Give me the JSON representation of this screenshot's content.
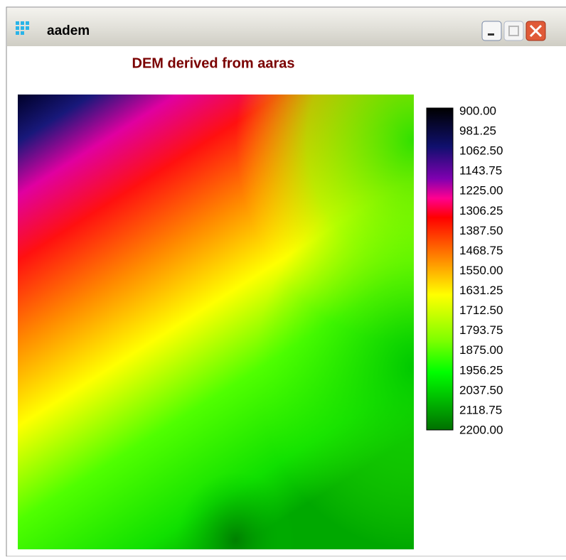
{
  "window": {
    "title": "aadem"
  },
  "plot": {
    "title": "DEM derived from aaras",
    "legend_labels": [
      "900.00",
      "981.25",
      "1062.50",
      "1143.75",
      "1225.00",
      "1306.25",
      "1387.50",
      "1468.75",
      "1550.00",
      "1631.25",
      "1712.50",
      "1793.75",
      "1875.00",
      "1956.25",
      "2037.50",
      "2118.75",
      "2200.00"
    ]
  }
}
